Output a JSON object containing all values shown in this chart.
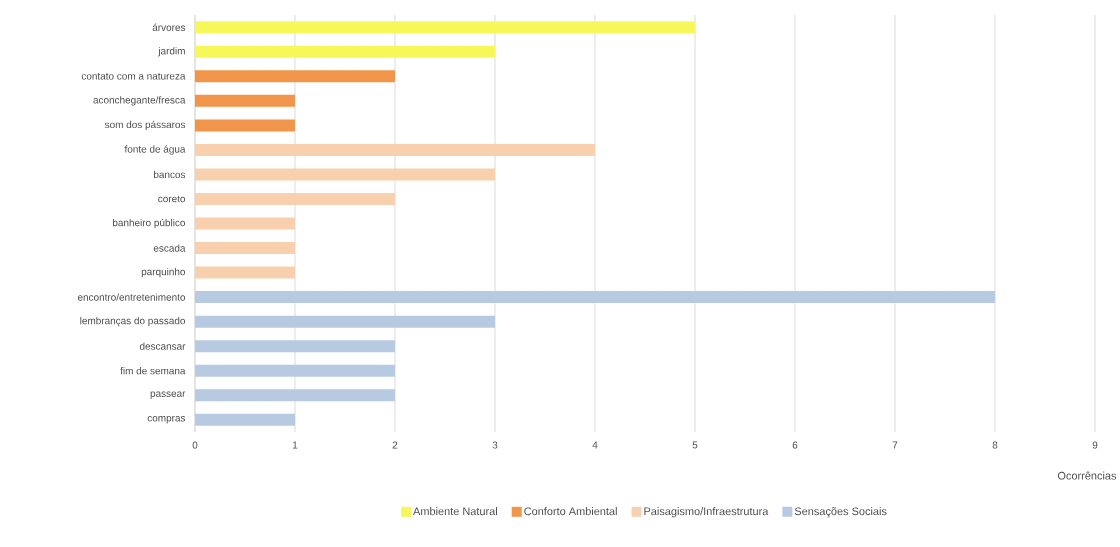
{
  "chart_data": {
    "type": "bar",
    "orientation": "horizontal",
    "xlabel": "Ocorrências",
    "categories": [
      "árvores",
      "jardim",
      "contato com a natureza",
      "aconchegante/fresca",
      "som dos pássaros",
      "fonte de água",
      "bancos",
      "coreto",
      "banheiro público",
      "escada",
      "parquinho",
      "encontro/entretenimento",
      "lembranças do passado",
      "descansar",
      "fim de semana",
      "passear",
      "compras"
    ],
    "series": [
      {
        "name": "Ambiente Natural",
        "color": "#f7f75a",
        "values": [
          5,
          3,
          null,
          null,
          null,
          null,
          null,
          null,
          null,
          null,
          null,
          null,
          null,
          null,
          null,
          null,
          null
        ]
      },
      {
        "name": "Conforto Ambiental",
        "color": "#f0954a",
        "values": [
          null,
          null,
          2,
          1,
          1,
          null,
          null,
          null,
          null,
          null,
          null,
          null,
          null,
          null,
          null,
          null,
          null
        ]
      },
      {
        "name": "Paisagismo/Infraestrutura",
        "color": "#f8d0ae",
        "values": [
          null,
          null,
          null,
          null,
          null,
          4,
          3,
          2,
          1,
          1,
          1,
          null,
          null,
          null,
          null,
          null,
          null
        ]
      },
      {
        "name": "Sensações Sociais",
        "color": "#b8cae2",
        "values": [
          null,
          null,
          null,
          null,
          null,
          null,
          null,
          null,
          null,
          null,
          null,
          8,
          3,
          2,
          2,
          2,
          1
        ]
      }
    ],
    "xlim": [
      0,
      9
    ],
    "xticks": [
      0,
      1,
      2,
      3,
      4,
      5,
      6,
      7,
      8,
      9
    ],
    "grid": "x",
    "legend": "bottom"
  }
}
